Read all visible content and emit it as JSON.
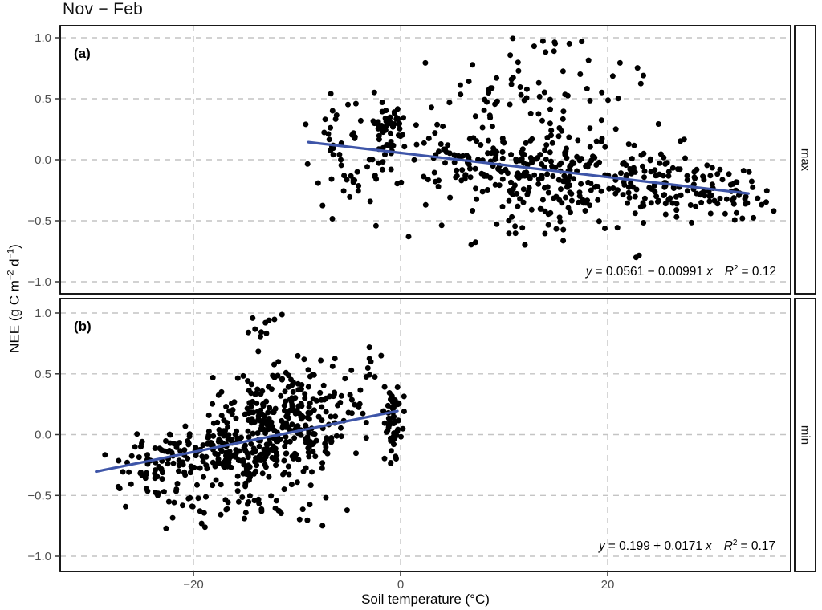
{
  "chart": {
    "title": "Nov − Feb",
    "xlabel": "Soil temperature (°C)",
    "ylabel_text": "NEE (g C m−2 d−1)",
    "ylabel_parts": {
      "pre": "NEE (g C m",
      "sup1": "−2",
      "mid": " d",
      "sup2": "−1",
      "post": ")"
    },
    "colors": {
      "point": "#000000",
      "regression_line": "#3e55a8",
      "gridline": "#c4c4c4",
      "tick_label": "#4d4d4d",
      "tick_mark": "#333333",
      "panel_border": "#000000",
      "strip_fill": "#ffffff"
    },
    "x_axis": {
      "ticks": [
        {
          "value": -20,
          "label": "−20"
        },
        {
          "value": 0,
          "label": "0"
        },
        {
          "value": 20,
          "label": "20"
        }
      ]
    },
    "y_axis": {
      "ticks": [
        {
          "value": 1.0,
          "label": "1.0"
        },
        {
          "value": 0.5,
          "label": "0.5"
        },
        {
          "value": 0.0,
          "label": "0.0"
        },
        {
          "value": -0.5,
          "label": "−0.5"
        },
        {
          "value": -1.0,
          "label": "−1.0"
        }
      ]
    }
  },
  "chart_data": [
    {
      "type": "scatter",
      "panel_label": "(a)",
      "strip_label": "max",
      "xlim": [
        -32.9,
        37.7
      ],
      "ylim": [
        -1.1,
        1.1
      ],
      "x_ticks": [
        -20,
        0,
        20
      ],
      "y_ticks": [
        1.0,
        0.5,
        0.0,
        -0.5,
        -1.0
      ],
      "point_x_range": [
        -9.2,
        36.5
      ],
      "point_y_range": [
        -0.82,
        1.0
      ],
      "n_points": 623,
      "regression": {
        "intercept": 0.0561,
        "slope": -0.00991,
        "r_squared": 0.12,
        "x_start": -8.9,
        "x_end": 33.6
      },
      "equation_text": "y = 0.0561 − 0.00991 x   R² = 0.12",
      "equation_parts": {
        "var_y": "y",
        "coeffs": "= 0.0561 − 0.00991",
        "var_x": "x",
        "r_var": "R",
        "r_exp": "2",
        "r_value": "= 0.12"
      },
      "scatter_generator": {
        "seed": 1337,
        "clusters": [
          {
            "n": 70,
            "x": [
              -4,
              2.8,
              -9.2,
              1
            ],
            "y_mode": "line",
            "y": [
              0.0,
              0.26,
              -0.7,
              0.5
            ]
          },
          {
            "n": 45,
            "x": [
              -1.3,
              0.7,
              -2.6,
              0.3
            ],
            "y_mode": "abs",
            "y": [
              0.22,
              0.13,
              -0.08,
              0.46
            ]
          },
          {
            "n": 300,
            "x": [
              13,
              6.5,
              1,
              28
            ],
            "y_mode": "line",
            "y": [
              -0.01,
              0.17,
              -0.6,
              0.52
            ]
          },
          {
            "n": 120,
            "x": [
              28,
              4,
              21,
              36.5
            ],
            "y_mode": "line",
            "y": [
              0.0,
              0.13,
              -0.45,
              0.38
            ]
          },
          {
            "n": 55,
            "x": [
              12,
              6,
              0,
              26
            ],
            "y_mode": "abs",
            "y": [
              0.55,
              0.18,
              0.32,
              1.0
            ]
          },
          {
            "n": 8,
            "x": [
              13,
              3,
              6,
              18
            ],
            "y_mode": "abs",
            "y": [
              0.9,
              0.08,
              0.76,
              1.0
            ]
          },
          {
            "n": 25,
            "x": [
              13,
              6,
              2,
              27
            ],
            "y_mode": "abs",
            "y": [
              -0.55,
              0.13,
              -0.82,
              -0.36
            ]
          }
        ]
      }
    },
    {
      "type": "scatter",
      "panel_label": "(b)",
      "strip_label": "min",
      "xlim": [
        -32.9,
        37.7
      ],
      "ylim": [
        -1.1,
        1.1
      ],
      "x_ticks": [
        -20,
        0,
        20
      ],
      "y_ticks": [
        1.0,
        0.5,
        0.0,
        -0.5,
        -1.0
      ],
      "point_x_range": [
        -29.8,
        0.4
      ],
      "point_y_range": [
        -0.86,
        1.0
      ],
      "n_points": 636,
      "regression": {
        "intercept": 0.199,
        "slope": 0.0171,
        "r_squared": 0.17,
        "x_start": -29.4,
        "x_end": -0.3
      },
      "equation_text": "y = 0.199 + 0.0171 x   R² = 0.17",
      "equation_parts": {
        "var_y": "y",
        "coeffs": "= 0.199 + 0.0171",
        "var_x": "x",
        "r_var": "R",
        "r_exp": "2",
        "r_value": "= 0.17"
      },
      "scatter_generator": {
        "seed": 9001,
        "clusters": [
          {
            "n": 330,
            "x": [
              -13,
              4.5,
              -24,
              -3
            ],
            "y_mode": "line",
            "y": [
              -0.04,
              0.16,
              -0.6,
              0.5
            ]
          },
          {
            "n": 80,
            "x": [
              -23,
              3,
              -29.8,
              -17
            ],
            "y_mode": "line",
            "y": [
              -0.02,
              0.12,
              -0.42,
              0.3
            ]
          },
          {
            "n": 110,
            "x": [
              -10.5,
              4,
              -19,
              -2
            ],
            "y_mode": "abs",
            "y": [
              0.3,
              0.17,
              0.05,
              0.74
            ]
          },
          {
            "n": 10,
            "x": [
              -12.5,
              1.8,
              -16,
              -9
            ],
            "y_mode": "abs",
            "y": [
              0.9,
              0.07,
              0.78,
              1.0
            ]
          },
          {
            "n": 45,
            "x": [
              -14,
              4.5,
              -25,
              -5
            ],
            "y_mode": "abs",
            "y": [
              -0.55,
              0.14,
              -0.86,
              -0.38
            ]
          },
          {
            "n": 55,
            "x": [
              -0.7,
              0.6,
              -1.8,
              0.4
            ],
            "y_mode": "abs",
            "y": [
              0.12,
              0.17,
              -0.35,
              0.46
            ]
          },
          {
            "n": 6,
            "x": [
              -2.5,
              1.2,
              -4.5,
              -0.5
            ],
            "y_mode": "abs",
            "y": [
              0.55,
              0.15,
              0.4,
              0.8
            ]
          }
        ]
      }
    }
  ]
}
